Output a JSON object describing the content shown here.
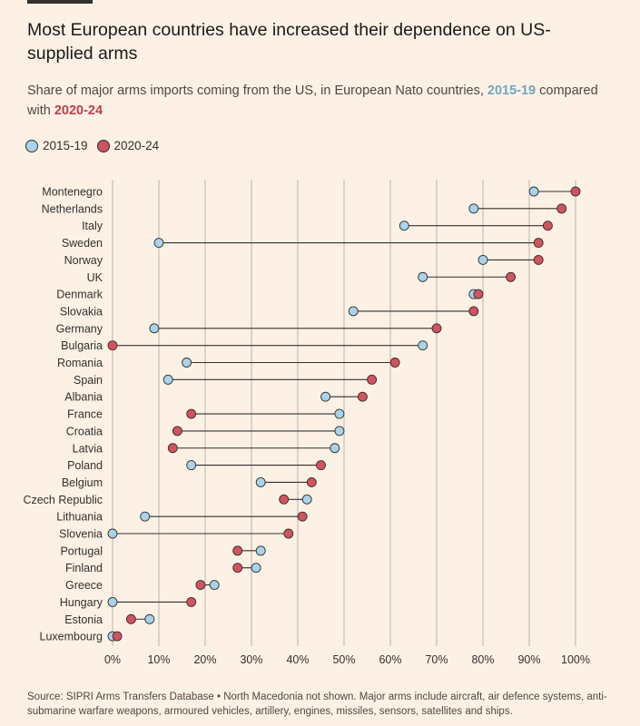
{
  "header": {
    "title": "Most European countries have increased their dependence on US-supplied arms",
    "subtitle_before": "Share of major arms imports coming from the US, in European Nato countries, ",
    "subtitle_period1": "2015-19",
    "subtitle_middle": " compared with ",
    "subtitle_period2": "2020-24"
  },
  "legend": {
    "item1": "2015-19",
    "item2": "2020-24"
  },
  "colors": {
    "period1": "#a8d3ea",
    "period2": "#d2525f",
    "connector": "#33302e",
    "grid": "#b9b3ad",
    "background": "#fdf1e5"
  },
  "chart_data": {
    "type": "dumbbell",
    "xlim": [
      0,
      100
    ],
    "x_ticks": [
      "0%",
      "10%",
      "20%",
      "30%",
      "40%",
      "50%",
      "60%",
      "70%",
      "80%",
      "90%",
      "100%"
    ],
    "categories": [
      "Montenegro",
      "Netherlands",
      "Italy",
      "Sweden",
      "Norway",
      "UK",
      "Denmark",
      "Slovakia",
      "Germany",
      "Bulgaria",
      "Romania",
      "Spain",
      "Albania",
      "France",
      "Croatia",
      "Latvia",
      "Poland",
      "Belgium",
      "Czech Republic",
      "Lithuania",
      "Slovenia",
      "Portugal",
      "Finland",
      "Greece",
      "Hungary",
      "Estonia",
      "Luxembourg"
    ],
    "series": [
      {
        "name": "2015-19",
        "values": [
          91,
          78,
          63,
          10,
          80,
          67,
          78,
          52,
          9,
          67,
          16,
          12,
          46,
          49,
          49,
          48,
          17,
          32,
          42,
          7,
          0,
          32,
          31,
          22,
          0,
          8,
          0
        ]
      },
      {
        "name": "2020-24",
        "values": [
          100,
          97,
          94,
          92,
          92,
          86,
          79,
          78,
          70,
          0,
          61,
          56,
          54,
          17,
          14,
          13,
          45,
          43,
          37,
          41,
          38,
          27,
          27,
          19,
          17,
          4,
          1
        ]
      }
    ],
    "grid": true
  },
  "source": "Source: SIPRI Arms Transfers Database • North Macedonia not shown. Major arms include aircraft, air defence systems, anti-submarine warfare weapons, armoured vehicles, artillery, engines, missiles, sensors, satellites and ships."
}
